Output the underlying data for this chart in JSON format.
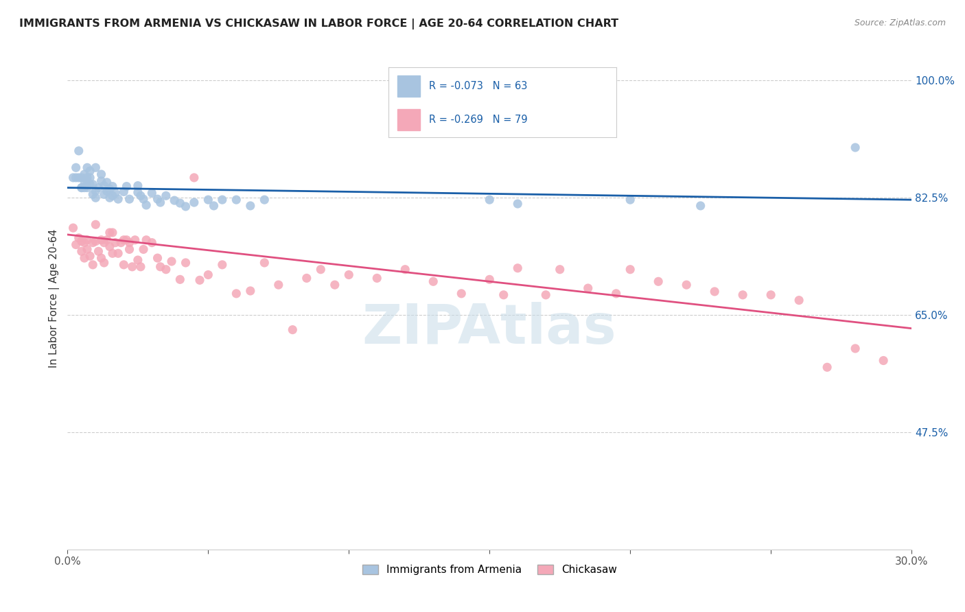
{
  "title": "IMMIGRANTS FROM ARMENIA VS CHICKASAW IN LABOR FORCE | AGE 20-64 CORRELATION CHART",
  "source": "Source: ZipAtlas.com",
  "ylabel": "In Labor Force | Age 20-64",
  "legend1_label": "Immigrants from Armenia",
  "legend2_label": "Chickasaw",
  "R1": -0.073,
  "N1": 63,
  "R2": -0.269,
  "N2": 79,
  "color1": "#a8c4e0",
  "color2": "#f4a8b8",
  "line_color1": "#1a5fa8",
  "line_color2": "#e05080",
  "text_color_blue": "#1a5fa8",
  "xmin": 0.0,
  "xmax": 0.3,
  "ymin": 0.3,
  "ymax": 1.05,
  "yticks": [
    0.475,
    0.65,
    0.825,
    1.0
  ],
  "ytick_labels": [
    "47.5%",
    "65.0%",
    "82.5%",
    "100.0%"
  ],
  "xticks": [
    0.0,
    0.05,
    0.1,
    0.15,
    0.2,
    0.25,
    0.3
  ],
  "xtick_labels": [
    "0.0%",
    "",
    "",
    "",
    "",
    "",
    "30.0%"
  ],
  "background_color": "#ffffff",
  "watermark": "ZIPAtlas",
  "scatter1_x": [
    0.002,
    0.003,
    0.003,
    0.004,
    0.004,
    0.005,
    0.005,
    0.005,
    0.006,
    0.006,
    0.006,
    0.007,
    0.007,
    0.007,
    0.007,
    0.008,
    0.008,
    0.008,
    0.009,
    0.009,
    0.01,
    0.01,
    0.01,
    0.011,
    0.012,
    0.012,
    0.013,
    0.013,
    0.014,
    0.014,
    0.015,
    0.015,
    0.016,
    0.016,
    0.017,
    0.018,
    0.02,
    0.021,
    0.022,
    0.025,
    0.025,
    0.026,
    0.027,
    0.028,
    0.03,
    0.032,
    0.033,
    0.035,
    0.038,
    0.04,
    0.042,
    0.045,
    0.05,
    0.052,
    0.055,
    0.06,
    0.065,
    0.07,
    0.15,
    0.16,
    0.2,
    0.225,
    0.28
  ],
  "scatter1_y": [
    0.855,
    0.855,
    0.87,
    0.855,
    0.895,
    0.84,
    0.855,
    0.84,
    0.84,
    0.85,
    0.86,
    0.84,
    0.85,
    0.855,
    0.87,
    0.845,
    0.855,
    0.865,
    0.83,
    0.845,
    0.825,
    0.835,
    0.87,
    0.84,
    0.85,
    0.86,
    0.83,
    0.843,
    0.835,
    0.848,
    0.825,
    0.838,
    0.828,
    0.842,
    0.832,
    0.823,
    0.834,
    0.842,
    0.823,
    0.833,
    0.843,
    0.828,
    0.823,
    0.814,
    0.832,
    0.823,
    0.818,
    0.828,
    0.821,
    0.817,
    0.812,
    0.818,
    0.822,
    0.813,
    0.822,
    0.822,
    0.813,
    0.822,
    0.822,
    0.816,
    0.822,
    0.813,
    0.9
  ],
  "scatter2_x": [
    0.002,
    0.003,
    0.004,
    0.005,
    0.005,
    0.006,
    0.006,
    0.007,
    0.007,
    0.008,
    0.009,
    0.009,
    0.01,
    0.01,
    0.011,
    0.012,
    0.012,
    0.013,
    0.013,
    0.014,
    0.015,
    0.015,
    0.016,
    0.016,
    0.017,
    0.018,
    0.019,
    0.02,
    0.02,
    0.021,
    0.022,
    0.022,
    0.023,
    0.024,
    0.025,
    0.026,
    0.027,
    0.028,
    0.03,
    0.032,
    0.033,
    0.035,
    0.037,
    0.04,
    0.042,
    0.045,
    0.047,
    0.05,
    0.055,
    0.06,
    0.065,
    0.07,
    0.075,
    0.08,
    0.085,
    0.09,
    0.095,
    0.1,
    0.11,
    0.12,
    0.13,
    0.14,
    0.15,
    0.155,
    0.16,
    0.17,
    0.175,
    0.185,
    0.195,
    0.2,
    0.21,
    0.22,
    0.23,
    0.24,
    0.25,
    0.26,
    0.27,
    0.28,
    0.29
  ],
  "scatter2_y": [
    0.78,
    0.755,
    0.765,
    0.745,
    0.76,
    0.735,
    0.758,
    0.748,
    0.762,
    0.738,
    0.725,
    0.758,
    0.76,
    0.785,
    0.745,
    0.762,
    0.735,
    0.758,
    0.728,
    0.762,
    0.773,
    0.752,
    0.742,
    0.773,
    0.758,
    0.742,
    0.758,
    0.762,
    0.725,
    0.762,
    0.748,
    0.758,
    0.722,
    0.762,
    0.732,
    0.722,
    0.748,
    0.762,
    0.758,
    0.735,
    0.722,
    0.718,
    0.73,
    0.703,
    0.728,
    0.855,
    0.702,
    0.71,
    0.725,
    0.682,
    0.686,
    0.728,
    0.695,
    0.628,
    0.705,
    0.718,
    0.695,
    0.71,
    0.705,
    0.718,
    0.7,
    0.682,
    0.703,
    0.68,
    0.72,
    0.68,
    0.718,
    0.69,
    0.682,
    0.718,
    0.7,
    0.695,
    0.685,
    0.68,
    0.68,
    0.672,
    0.572,
    0.6,
    0.582
  ],
  "line2_x0": 0.0,
  "line2_y0": 0.77,
  "line2_x1": 0.3,
  "line2_y1": 0.63,
  "line1_x0": 0.0,
  "line1_y0": 0.84,
  "line1_x1": 0.3,
  "line1_y1": 0.822
}
